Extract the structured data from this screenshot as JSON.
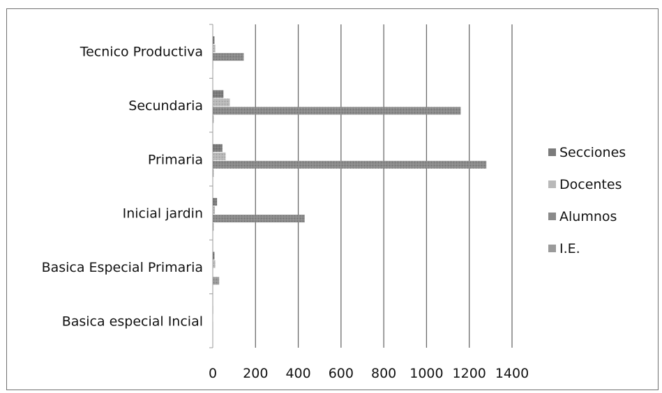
{
  "chart_data": {
    "type": "bar",
    "orientation": "horizontal",
    "categories": [
      "Basica especial Incial",
      "Basica Especial Primaria",
      "Inicial jardin",
      "Primaria",
      "Secundaria",
      "Tecnico Productiva"
    ],
    "series": [
      {
        "name": "I.E.",
        "values": [
          1,
          30,
          4,
          4,
          4,
          2
        ]
      },
      {
        "name": "Alumnos",
        "values": [
          0,
          0,
          430,
          1280,
          1160,
          145
        ]
      },
      {
        "name": "Docentes",
        "values": [
          1,
          12,
          10,
          60,
          80,
          12
        ]
      },
      {
        "name": "Secciones",
        "values": [
          1,
          8,
          20,
          45,
          50,
          8
        ]
      }
    ],
    "legend_order": [
      "Secciones",
      "Docentes",
      "Alumnos",
      "I.E."
    ],
    "x_ticks": [
      "0",
      "200",
      "400",
      "600",
      "800",
      "1000",
      "1200",
      "1400"
    ],
    "xlim": [
      0,
      1400
    ],
    "grid": "vertical",
    "legend_position": "right",
    "colors": {
      "Secciones": "#7b7b7b",
      "Docentes": "#b9b9b9",
      "Alumnos": "#8a8a8a",
      "I.E.": "#9a9a9a"
    }
  }
}
